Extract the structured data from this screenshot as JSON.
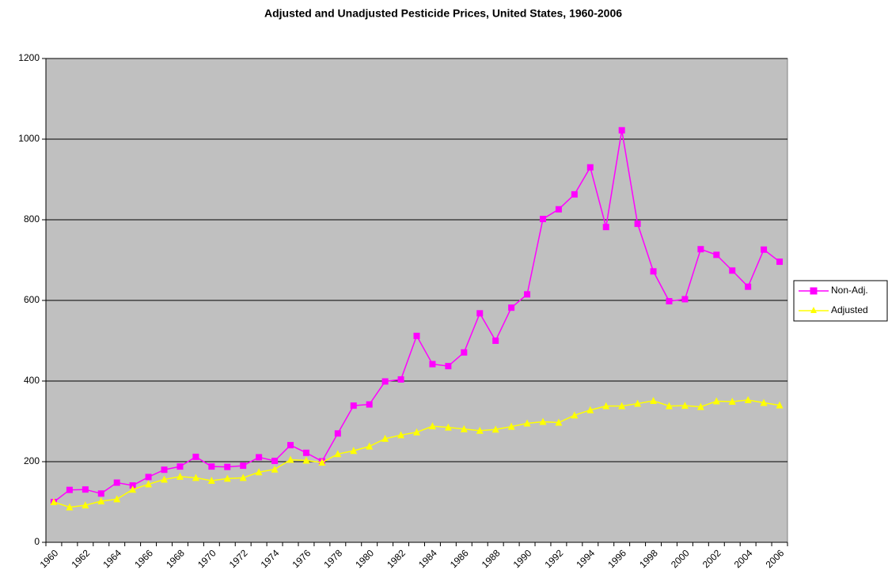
{
  "chart_data": {
    "type": "line",
    "title": "Adjusted and Unadjusted Pesticide Prices, United States, 1960-2006",
    "categories": [
      "1960",
      null,
      "1962",
      null,
      "1964",
      null,
      "1966",
      null,
      "1968",
      null,
      "1970",
      null,
      "1972",
      null,
      "1974",
      null,
      "1976",
      null,
      "1978",
      null,
      "1980",
      null,
      "1982",
      null,
      "1984",
      null,
      "1986",
      null,
      "1988",
      null,
      "1990",
      null,
      "1992",
      null,
      "1994",
      null,
      "1996",
      null,
      "1998",
      null,
      "2000",
      null,
      "2002",
      null,
      "2004",
      null,
      "2006"
    ],
    "series": [
      {
        "name": "Non-Adj.",
        "color": "#ff00ff",
        "marker": "square",
        "values": [
          100,
          130,
          131,
          121,
          148,
          141,
          162,
          180,
          188,
          212,
          188,
          187,
          190,
          211,
          202,
          241,
          222,
          201,
          270,
          339,
          342,
          399,
          404,
          512,
          442,
          437,
          471,
          568,
          500,
          582,
          615,
          802,
          826,
          863,
          930,
          782,
          1022,
          790,
          672,
          598,
          603,
          727,
          713,
          674,
          634,
          726,
          696
        ]
      },
      {
        "name": "Adjusted",
        "color": "#ffff00",
        "marker": "triangle",
        "values": [
          100,
          87,
          92,
          102,
          107,
          131,
          144,
          156,
          163,
          160,
          153,
          158,
          160,
          174,
          181,
          205,
          203,
          198,
          219,
          227,
          238,
          257,
          266,
          273,
          288,
          285,
          281,
          277,
          280,
          287,
          295,
          299,
          297,
          315,
          328,
          338,
          338,
          344,
          351,
          338,
          339,
          336,
          350,
          349,
          353,
          346,
          340
        ]
      }
    ],
    "ylim": [
      0,
      1200
    ],
    "yticks": [
      0,
      200,
      400,
      600,
      800,
      1000,
      1200
    ],
    "grid": true,
    "legend": "right"
  }
}
